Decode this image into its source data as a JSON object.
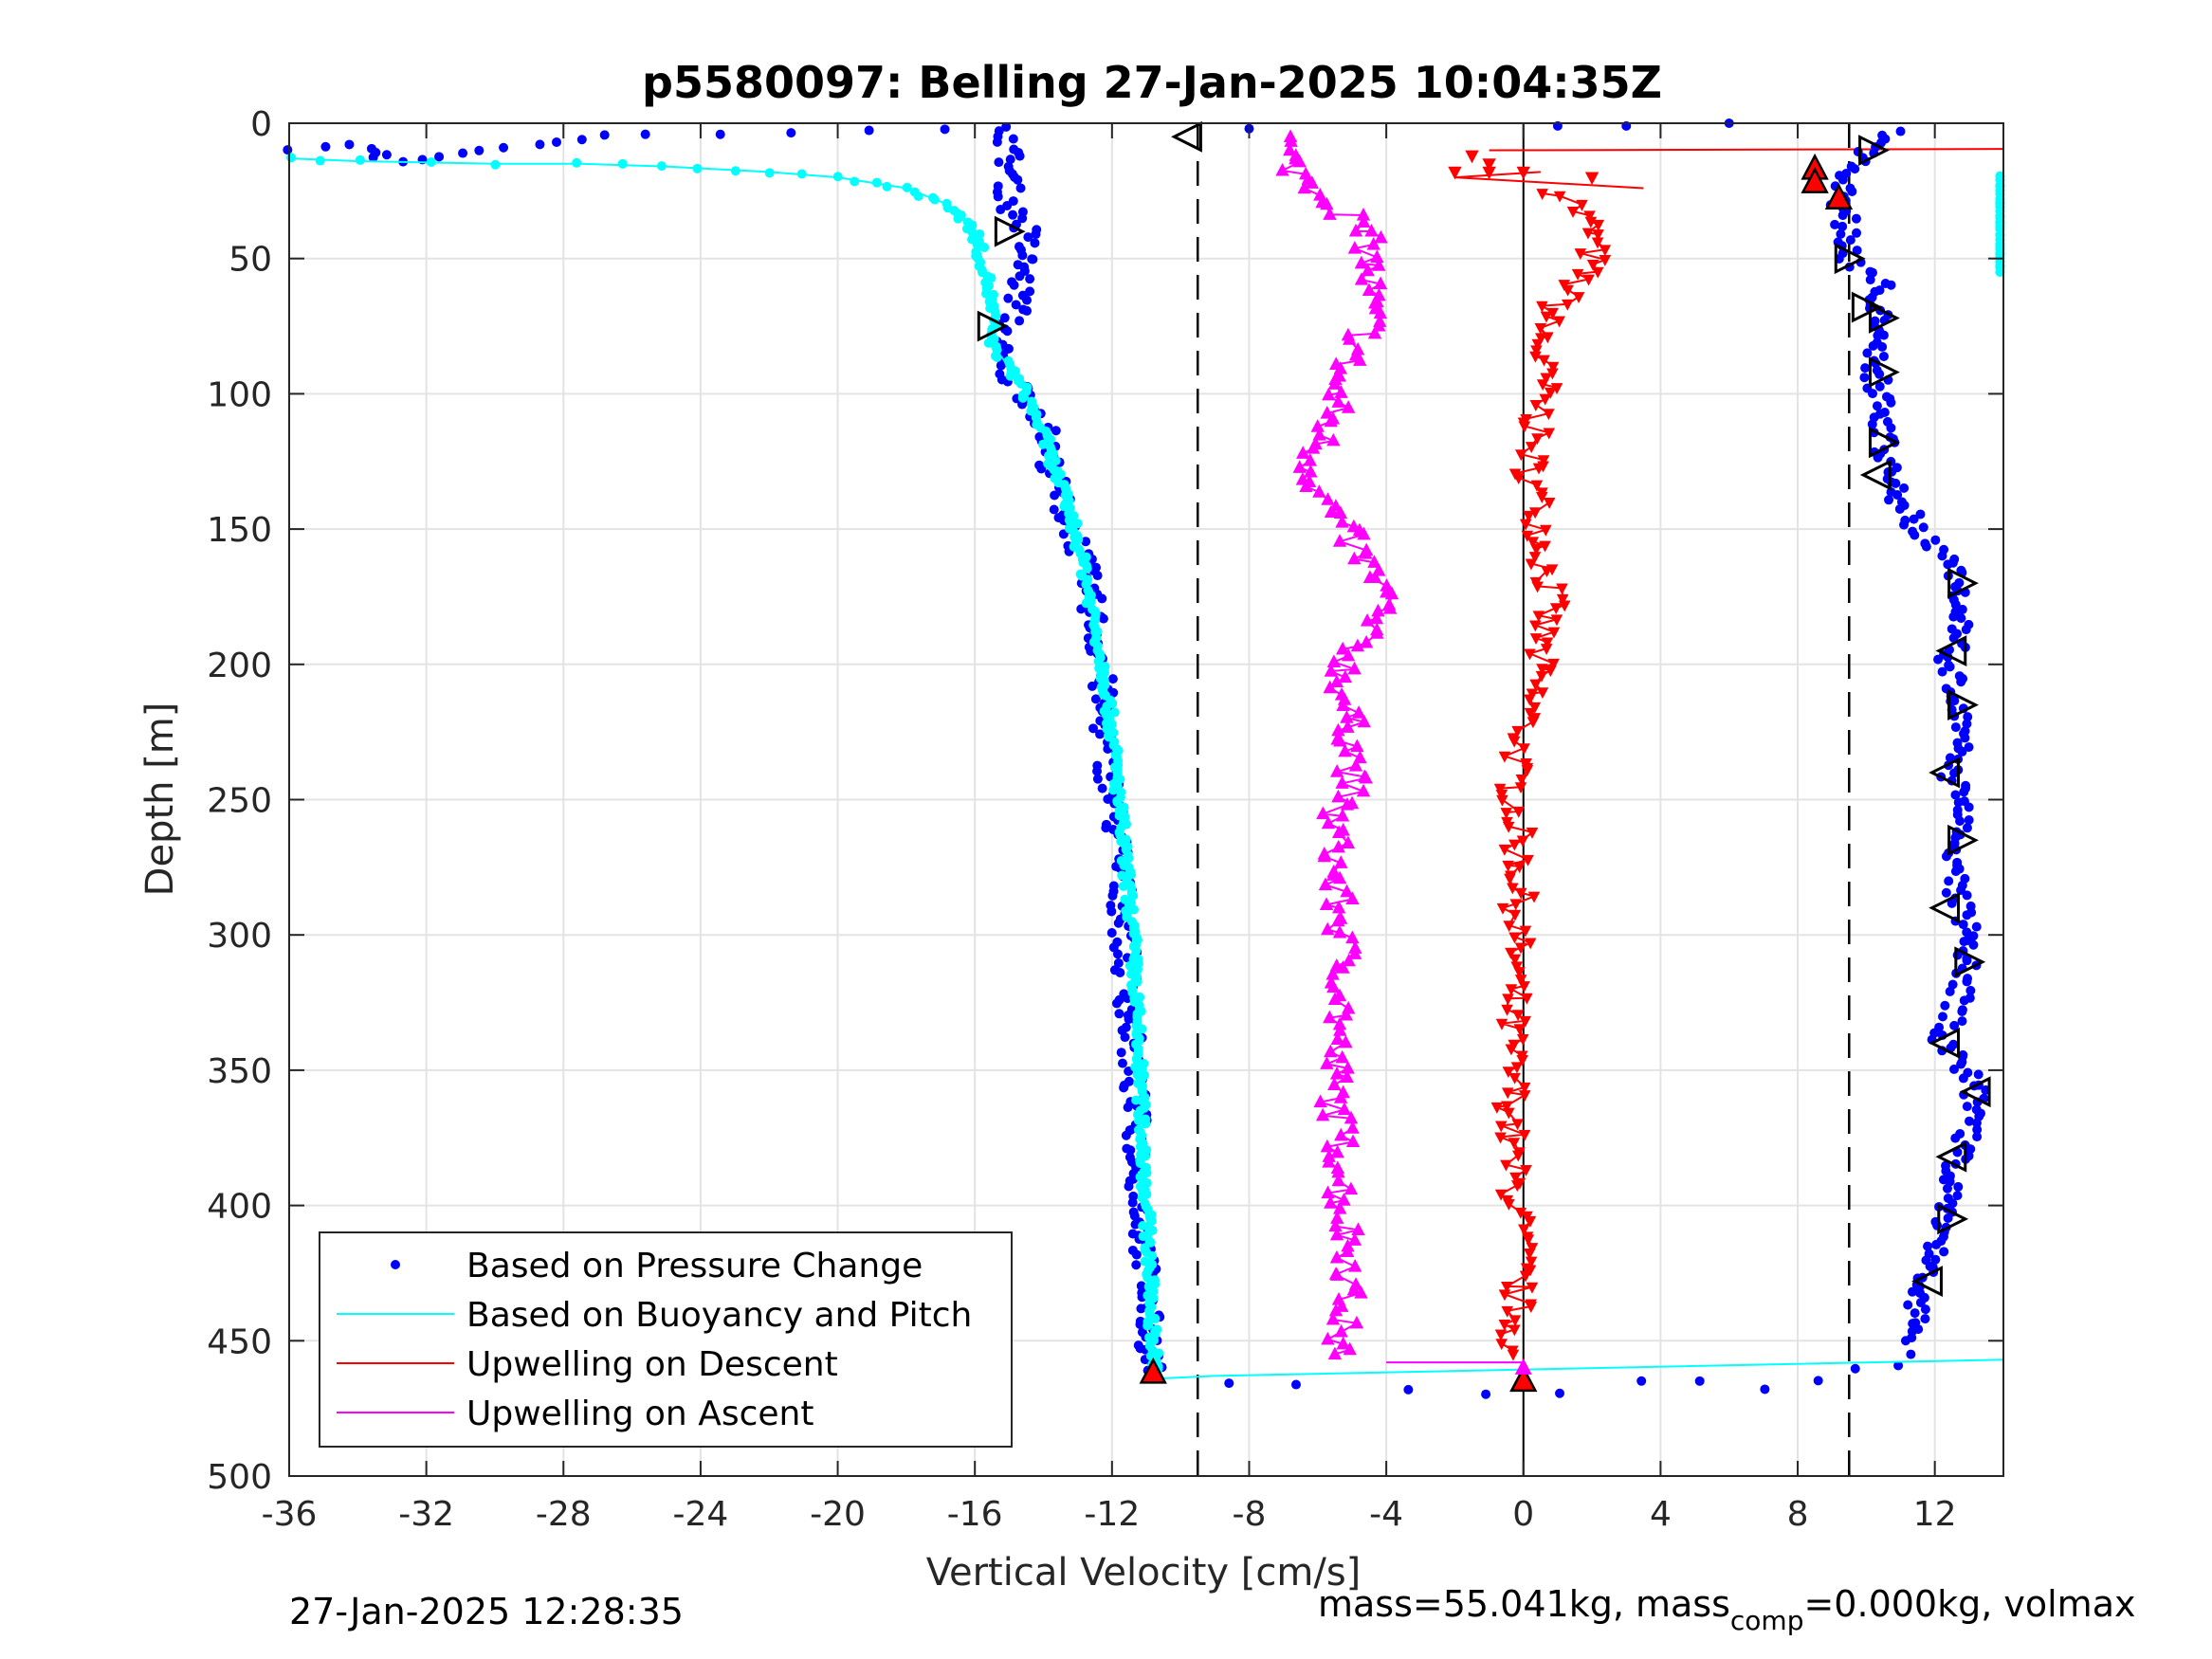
{
  "chart_data": {
    "type": "scatter",
    "title": "p5580097: Belling 27-Jan-2025 10:04:35Z",
    "xlabel": "Vertical Velocity [cm/s]",
    "ylabel": "Depth [m]",
    "xlim": [
      -36,
      14
    ],
    "ylim": [
      0,
      500
    ],
    "y_reversed": true,
    "grid": true,
    "xticks": [
      "-36",
      "-32",
      "-28",
      "-24",
      "-20",
      "-16",
      "-12",
      "-8",
      "-4",
      "0",
      "4",
      "8",
      "12"
    ],
    "xtick_values": [
      -36,
      -32,
      -28,
      -24,
      -20,
      -16,
      -12,
      -8,
      -4,
      0,
      4,
      8,
      12
    ],
    "yticks": [
      "0",
      "50",
      "100",
      "150",
      "200",
      "250",
      "300",
      "350",
      "400",
      "450",
      "500"
    ],
    "ytick_values": [
      0,
      50,
      100,
      150,
      200,
      250,
      300,
      350,
      400,
      450,
      500
    ],
    "reference_lines": {
      "zero_line_x": 0,
      "dashed_x": [
        -9.5,
        9.5
      ]
    },
    "legend": {
      "placement": "bottom-left",
      "entries": [
        {
          "label": "Based on Pressure Change",
          "color": "#0000ff",
          "marker": "dot"
        },
        {
          "label": "Based on Buoyancy and Pitch",
          "color": "#00ffff",
          "marker": "line"
        },
        {
          "label": "Upwelling on Descent",
          "color": "#ff0000",
          "marker": "line"
        },
        {
          "label": "Upwelling on Ascent",
          "color": "#ff00ff",
          "marker": "line"
        }
      ]
    },
    "series": [
      {
        "name": "Based on Pressure Change",
        "color": "#0000ff",
        "descent_profile": [
          [
            -35.8,
            10
          ],
          [
            -34,
            8
          ],
          [
            -33,
            14
          ],
          [
            -25.8,
            4
          ],
          [
            -15,
            2
          ],
          [
            -15,
            30
          ],
          [
            -14.5,
            40
          ],
          [
            -14.6,
            55
          ],
          [
            -14.8,
            70
          ],
          [
            -15.3,
            80
          ],
          [
            -15.3,
            90
          ],
          [
            -14.5,
            100
          ],
          [
            -14,
            110
          ],
          [
            -13.8,
            125
          ],
          [
            -13.5,
            140
          ],
          [
            -13,
            155
          ],
          [
            -12.7,
            170
          ],
          [
            -12.5,
            185
          ],
          [
            -12.3,
            200
          ],
          [
            -12.3,
            215
          ],
          [
            -12.2,
            230
          ],
          [
            -12,
            250
          ],
          [
            -11.8,
            270
          ],
          [
            -11.7,
            290
          ],
          [
            -11.6,
            310
          ],
          [
            -11.5,
            330
          ],
          [
            -11.4,
            350
          ],
          [
            -11.3,
            370
          ],
          [
            -11.2,
            390
          ],
          [
            -11.1,
            410
          ],
          [
            -11,
            430
          ],
          [
            -10.9,
            450
          ],
          [
            -10.8,
            462
          ]
        ],
        "bottom_turn": [
          [
            -10.8,
            463
          ],
          [
            -6.5,
            465
          ],
          [
            -3.5,
            466
          ],
          [
            -1,
            467
          ],
          [
            1,
            467
          ],
          [
            3.5,
            466
          ],
          [
            5,
            466
          ],
          [
            7,
            465
          ],
          [
            8.5,
            464
          ],
          [
            9.8,
            462
          ],
          [
            10.8,
            460
          ],
          [
            11.3,
            455
          ]
        ],
        "ascent_profile": [
          [
            11.5,
            450
          ],
          [
            11.5,
            430
          ],
          [
            12.2,
            410
          ],
          [
            12.5,
            390
          ],
          [
            13,
            370
          ],
          [
            13.2,
            355
          ],
          [
            12.2,
            340
          ],
          [
            12.8,
            320
          ],
          [
            13,
            300
          ],
          [
            12.6,
            280
          ],
          [
            12.8,
            260
          ],
          [
            12.5,
            240
          ],
          [
            12.8,
            220
          ],
          [
            12.4,
            200
          ],
          [
            12.8,
            185
          ],
          [
            12.5,
            165
          ],
          [
            11.5,
            150
          ],
          [
            10.8,
            135
          ],
          [
            10.5,
            120
          ],
          [
            10.5,
            105
          ],
          [
            10.2,
            90
          ],
          [
            10.3,
            75
          ],
          [
            10.4,
            60
          ],
          [
            9.5,
            50
          ],
          [
            9.5,
            40
          ],
          [
            9.2,
            30
          ],
          [
            9.5,
            20
          ],
          [
            10,
            10
          ],
          [
            11,
            3
          ]
        ],
        "outliers": [
          [
            -8,
            2
          ],
          [
            6,
            0
          ],
          [
            3,
            1
          ],
          [
            1,
            1
          ]
        ]
      },
      {
        "name": "Based on Buoyancy and Pitch",
        "color": "#00ffff",
        "descent_profile": [
          [
            -36,
            13
          ],
          [
            -34,
            14
          ],
          [
            -30,
            15
          ],
          [
            -27.5,
            15
          ],
          [
            -25,
            16
          ],
          [
            -22,
            18
          ],
          [
            -20,
            20
          ],
          [
            -18,
            24
          ],
          [
            -16.8,
            30
          ],
          [
            -16,
            40
          ],
          [
            -15.8,
            50
          ],
          [
            -15.6,
            60
          ],
          [
            -15.5,
            70
          ],
          [
            -15.5,
            82
          ],
          [
            -15,
            90
          ],
          [
            -14.5,
            100
          ],
          [
            -14,
            115
          ],
          [
            -13.6,
            130
          ],
          [
            -13.2,
            145
          ],
          [
            -12.8,
            165
          ],
          [
            -12.5,
            185
          ],
          [
            -12.2,
            205
          ],
          [
            -12,
            225
          ],
          [
            -11.8,
            250
          ],
          [
            -11.6,
            275
          ],
          [
            -11.4,
            300
          ],
          [
            -11.3,
            325
          ],
          [
            -11.2,
            350
          ],
          [
            -11.1,
            375
          ],
          [
            -11,
            400
          ],
          [
            -10.9,
            425
          ],
          [
            -10.8,
            450
          ],
          [
            -10.7,
            462
          ]
        ],
        "bottom_line": [
          [
            -10.7,
            464
          ],
          [
            -9,
            463
          ],
          [
            14,
            457
          ]
        ],
        "ascent_fragment": [
          [
            14,
            20
          ],
          [
            14.2,
            25
          ],
          [
            14,
            30
          ],
          [
            14,
            35
          ],
          [
            14.1,
            50
          ],
          [
            14,
            55
          ]
        ]
      },
      {
        "name": "Upwelling on Descent",
        "color": "#ff0000",
        "profile": [
          [
            1,
            25
          ],
          [
            1.5,
            30
          ],
          [
            2,
            40
          ],
          [
            2,
            50
          ],
          [
            1.5,
            60
          ],
          [
            0.8,
            70
          ],
          [
            0.5,
            80
          ],
          [
            0.5,
            90
          ],
          [
            0.6,
            100
          ],
          [
            0.3,
            115
          ],
          [
            0.2,
            130
          ],
          [
            0.5,
            145
          ],
          [
            0.6,
            160
          ],
          [
            0.8,
            175
          ],
          [
            0.5,
            190
          ],
          [
            0.4,
            205
          ],
          [
            0.1,
            220
          ],
          [
            -0.3,
            240
          ],
          [
            -0.2,
            260
          ],
          [
            -0.1,
            280
          ],
          [
            -0.2,
            300
          ],
          [
            -0.3,
            320
          ],
          [
            -0.4,
            340
          ],
          [
            -0.3,
            360
          ],
          [
            -0.4,
            380
          ],
          [
            -0.2,
            400
          ],
          [
            -0.1,
            420
          ],
          [
            -0.2,
            440
          ],
          [
            -0.3,
            455
          ]
        ],
        "near_surface": [
          [
            -1,
            15
          ],
          [
            -2,
            18
          ],
          [
            0,
            18
          ],
          [
            2,
            20
          ],
          [
            -1.5,
            12
          ],
          [
            -1,
            18
          ]
        ],
        "lines": [
          [
            [
              -1,
              10
            ],
            [
              14,
              9.5
            ]
          ],
          [
            [
              -2,
              20
            ],
            [
              3.5,
              24
            ]
          ],
          [
            [
              -2,
              20
            ],
            [
              0.5,
              18
            ]
          ]
        ]
      },
      {
        "name": "Upwelling on Ascent",
        "color": "#ff00ff",
        "profile": [
          [
            -7,
            5
          ],
          [
            -6.8,
            15
          ],
          [
            -6,
            25
          ],
          [
            -5,
            35
          ],
          [
            -4.5,
            45
          ],
          [
            -4.5,
            55
          ],
          [
            -4.5,
            65
          ],
          [
            -4.5,
            75
          ],
          [
            -5,
            85
          ],
          [
            -5.5,
            95
          ],
          [
            -5.5,
            105
          ],
          [
            -5.8,
            115
          ],
          [
            -6.2,
            125
          ],
          [
            -6,
            135
          ],
          [
            -5.5,
            145
          ],
          [
            -5,
            155
          ],
          [
            -4.5,
            165
          ],
          [
            -4,
            175
          ],
          [
            -4.5,
            185
          ],
          [
            -5,
            195
          ],
          [
            -5.3,
            205
          ],
          [
            -5.2,
            215
          ],
          [
            -5,
            225
          ],
          [
            -5,
            235
          ],
          [
            -5,
            245
          ],
          [
            -5.5,
            255
          ],
          [
            -5.5,
            265
          ],
          [
            -5.5,
            280
          ],
          [
            -5.3,
            300
          ],
          [
            -5.2,
            320
          ],
          [
            -5.5,
            340
          ],
          [
            -5.5,
            360
          ],
          [
            -5.3,
            380
          ],
          [
            -5.3,
            400
          ],
          [
            -5,
            420
          ],
          [
            -5.2,
            440
          ],
          [
            -5.5,
            455
          ]
        ],
        "bottom_line": [
          [
            -4,
            458
          ],
          [
            0,
            458
          ]
        ]
      }
    ],
    "markers": {
      "black_triangles_left": [
        [
          -9.8,
          5
        ],
        [
          13.2,
          358
        ],
        [
          12.5,
          382
        ],
        [
          11.8,
          428
        ],
        [
          12.3,
          340
        ],
        [
          12.3,
          290
        ],
        [
          12.3,
          240
        ],
        [
          12.5,
          195
        ],
        [
          10.3,
          130
        ]
      ],
      "black_triangles_right": [
        [
          -15,
          40
        ],
        [
          -15.5,
          75
        ],
        [
          10.2,
          10
        ],
        [
          9.5,
          50
        ],
        [
          10.5,
          72
        ],
        [
          10.5,
          92
        ],
        [
          10.5,
          118
        ],
        [
          12.8,
          170
        ],
        [
          12.8,
          215
        ],
        [
          12.8,
          265
        ],
        [
          13,
          310
        ],
        [
          12.5,
          405
        ],
        [
          10,
          68
        ]
      ],
      "red_up_triangles": [
        [
          8.5,
          17
        ],
        [
          8.5,
          22
        ],
        [
          9.2,
          28
        ],
        [
          -10.8,
          462
        ],
        [
          0,
          465
        ]
      ],
      "magenta_triangle": [
        [
          0,
          460
        ]
      ]
    }
  },
  "footer": {
    "timestamp": "27-Jan-2025 12:28:35",
    "mass_text": "mass=55.041kg, mass",
    "mass_sub": "comp",
    "mass_rest": "=0.000kg, volmax"
  }
}
